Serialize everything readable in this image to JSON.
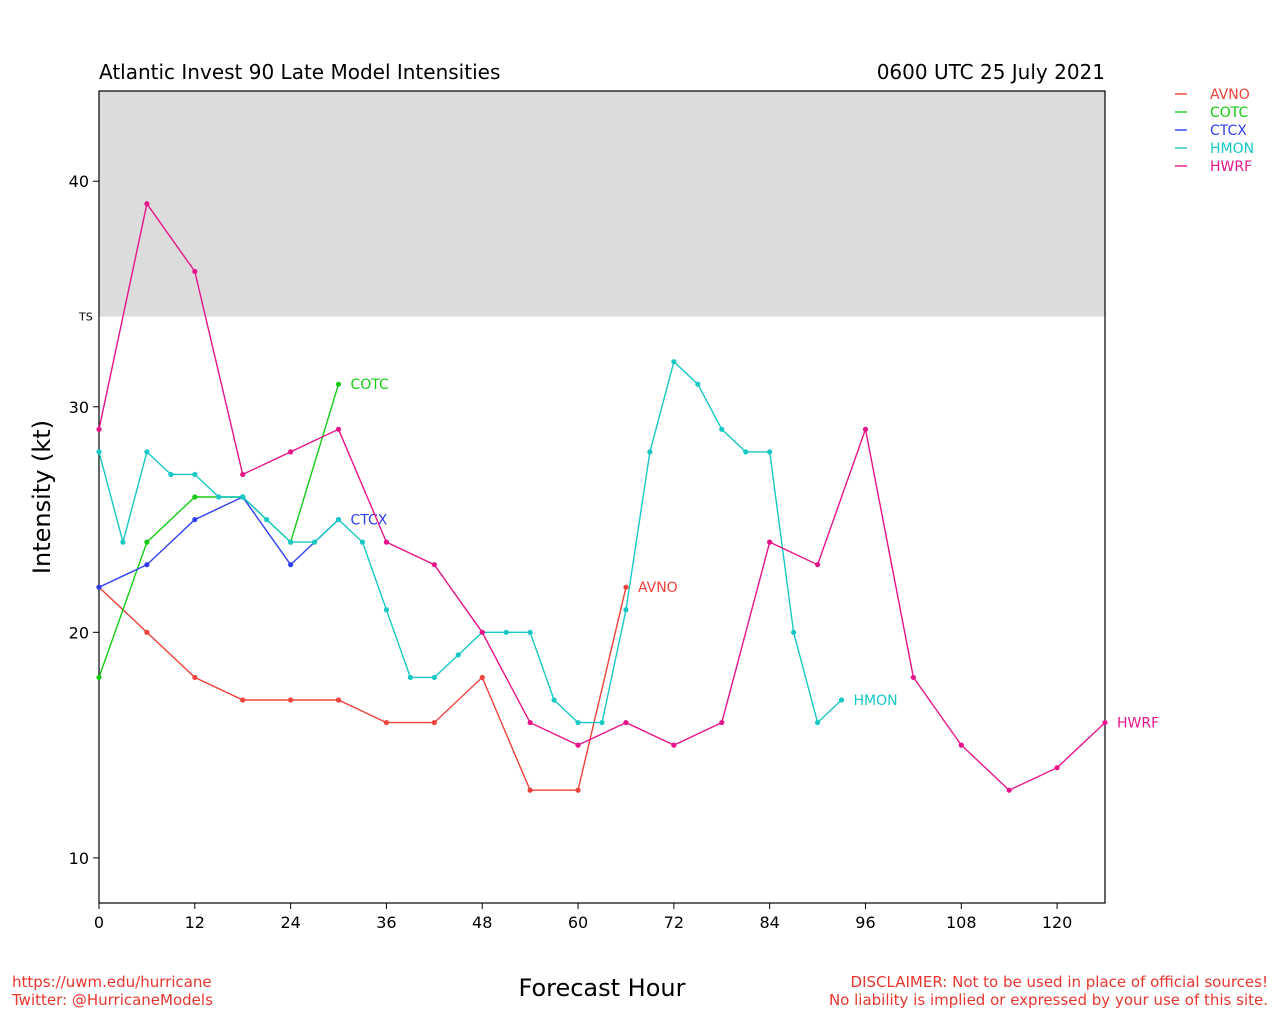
{
  "chart_data": {
    "type": "line",
    "title": "Atlantic Invest 90 Late Model Intensities",
    "subtitle": "0600 UTC 25 July 2021",
    "xlabel": "Forecast Hour",
    "ylabel": "Intensity (kt)",
    "xlim": [
      0,
      126
    ],
    "ylim": [
      8,
      44
    ],
    "xticks": [
      0,
      12,
      24,
      36,
      48,
      60,
      72,
      84,
      96,
      108,
      120
    ],
    "yticks": [
      10,
      20,
      30,
      40
    ],
    "grid": false,
    "legend_position": "top-right, outside plot",
    "shaded_band": {
      "label": "TS",
      "from": 34,
      "to": 44,
      "color": "#dcdcdc"
    },
    "series": [
      {
        "name": "AVNO",
        "color": "#f0413a",
        "x": [
          0,
          6,
          12,
          18,
          24,
          30,
          36,
          42,
          48,
          54,
          60,
          66
        ],
        "y": [
          22,
          20,
          18,
          17,
          17,
          17,
          16,
          16,
          18,
          13,
          13,
          22
        ]
      },
      {
        "name": "COTC",
        "color": "#14cc14",
        "x": [
          0,
          6,
          12,
          18,
          24,
          30
        ],
        "y": [
          18,
          24,
          26,
          26,
          24,
          31
        ]
      },
      {
        "name": "CTCX",
        "color": "#2f3ff0",
        "x": [
          0,
          6,
          12,
          18,
          24,
          30
        ],
        "y": [
          22,
          23,
          25,
          26,
          23,
          25
        ]
      },
      {
        "name": "HMON",
        "color": "#17c8c4",
        "x": [
          0,
          3,
          6,
          9,
          12,
          15,
          18,
          21,
          24,
          27,
          30,
          33,
          36,
          39,
          42,
          45,
          48,
          51,
          54,
          57,
          60,
          63,
          66,
          69,
          72,
          75,
          78,
          81,
          84,
          87,
          90,
          93
        ],
        "y": [
          28,
          24,
          28,
          27,
          27,
          26,
          26,
          25,
          24,
          24,
          25,
          24,
          21,
          18,
          18,
          19,
          20,
          20,
          20,
          17,
          16,
          16,
          21,
          28,
          32,
          31,
          29,
          28,
          28,
          20,
          16,
          17
        ]
      },
      {
        "name": "HWRF",
        "color": "#e8138a",
        "x": [
          0,
          6,
          12,
          18,
          24,
          30,
          36,
          42,
          48,
          54,
          60,
          66,
          72,
          78,
          84,
          90,
          96,
          102,
          108,
          114,
          120,
          126
        ],
        "y": [
          29,
          39,
          36,
          27,
          28,
          29,
          24,
          23,
          20,
          16,
          15,
          16,
          15,
          16,
          24,
          23,
          29,
          18,
          15,
          13,
          14,
          16
        ]
      }
    ]
  },
  "footer": {
    "url": "https://uwm.edu/hurricane",
    "twitter": "Twitter: @HurricaneModels",
    "disclaimer_1": "DISCLAIMER: Not to be used in place of official sources!",
    "disclaimer_2": "No liability is implied or expressed by your use of this site."
  }
}
